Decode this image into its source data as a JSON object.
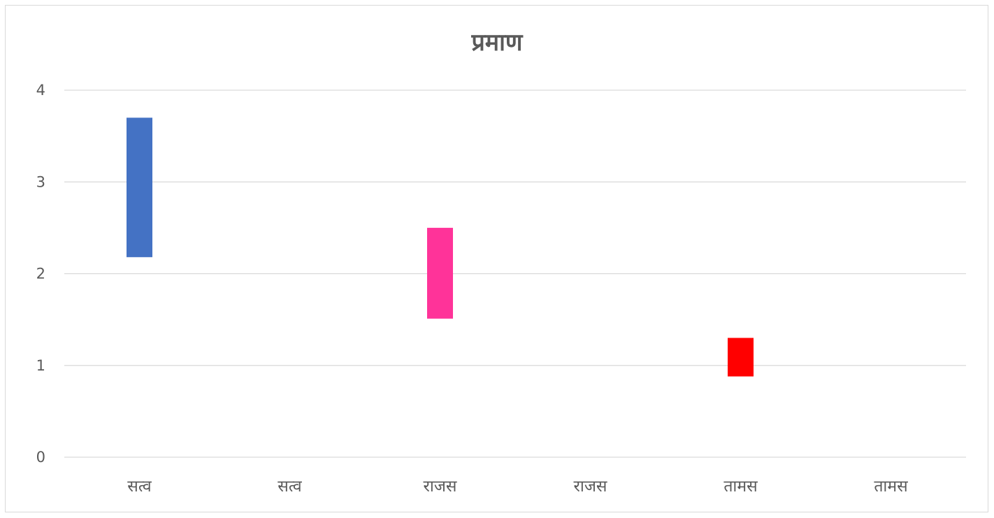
{
  "chart_data": {
    "type": "bar",
    "title": "प्रमाण",
    "xlabel": "",
    "ylabel": "",
    "categories": [
      "सत्व",
      "सत्व",
      "राजस",
      "राजस",
      "तामस",
      "तामस"
    ],
    "floating_bars": [
      {
        "category_index": 0,
        "low": 2.18,
        "high": 3.7,
        "color": "#4472c4"
      },
      {
        "category_index": 2,
        "low": 1.51,
        "high": 2.5,
        "color": "#ff3399"
      },
      {
        "category_index": 4,
        "low": 0.88,
        "high": 1.3,
        "color": "#ff0000"
      }
    ],
    "ylim": [
      0,
      4
    ],
    "yticks": [
      0,
      1,
      2,
      3,
      4
    ],
    "grid": true,
    "legend": "none"
  }
}
